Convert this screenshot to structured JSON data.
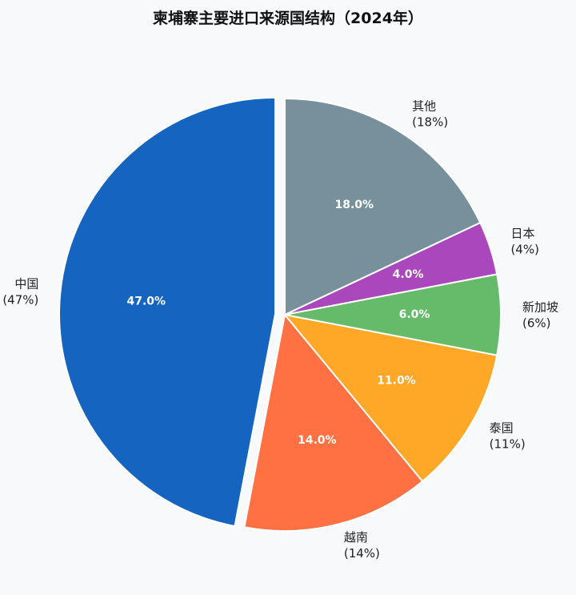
{
  "chart_data": {
    "type": "pie",
    "title": "柬埔寨主要进口来源国结构（2024年）",
    "start_angle_deg": 90,
    "direction": "counterclockwise",
    "explode": "中国",
    "slices": [
      {
        "label": "中国",
        "value": 47.0,
        "pct_label": "47.0%",
        "outer_label": "(47%)",
        "color": "#1565c0"
      },
      {
        "label": "越南",
        "value": 14.0,
        "pct_label": "14.0%",
        "outer_label": "(14%)",
        "color": "#ff7043"
      },
      {
        "label": "泰国",
        "value": 11.0,
        "pct_label": "11.0%",
        "outer_label": "(11%)",
        "color": "#ffa726"
      },
      {
        "label": "新加坡",
        "value": 6.0,
        "pct_label": "6.0%",
        "outer_label": "(6%)",
        "color": "#66bb6a"
      },
      {
        "label": "日本",
        "value": 4.0,
        "pct_label": "4.0%",
        "outer_label": "(4%)",
        "color": "#ab47bc"
      },
      {
        "label": "其他",
        "value": 18.0,
        "pct_label": "18.0%",
        "outer_label": "(18%)",
        "color": "#78909c"
      }
    ]
  }
}
